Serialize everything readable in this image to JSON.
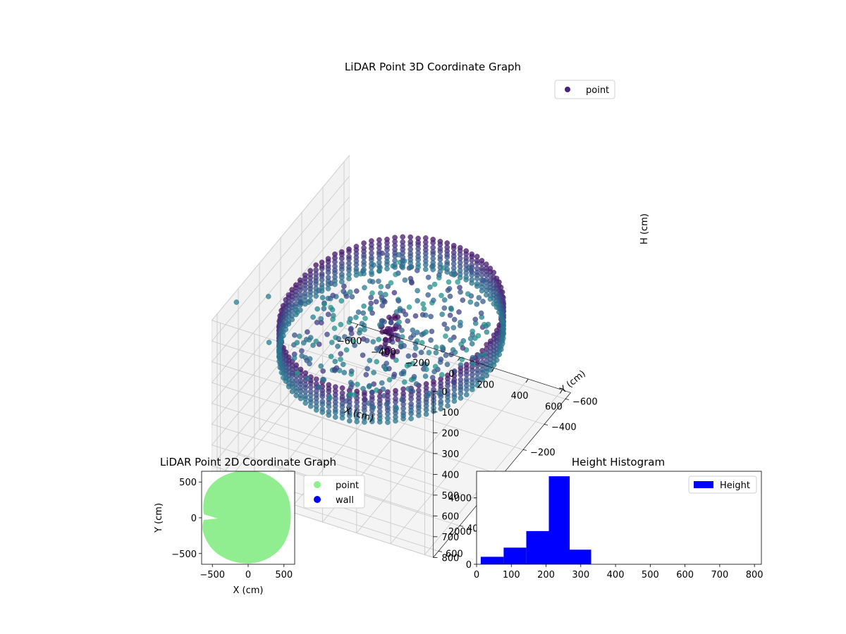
{
  "chart_data": [
    {
      "type": "scatter",
      "title": "LiDAR Point 3D Coordinate Graph",
      "xlabel": "X (cm)",
      "ylabel": "Y (cm)",
      "zlabel": "H (cm)",
      "xlim": [
        -650,
        650
      ],
      "ylim": [
        -650,
        650
      ],
      "zlim": [
        0,
        800
      ],
      "z_inverted": true,
      "x_ticks": [
        -600,
        -400,
        -200,
        0,
        200,
        400,
        600
      ],
      "y_ticks": [
        -600,
        -400,
        -200,
        0,
        200,
        400,
        600
      ],
      "z_ticks": [
        0,
        100,
        200,
        300,
        400,
        500,
        600,
        700,
        800
      ],
      "grid": true,
      "legend": {
        "position": "top-right",
        "entries": [
          {
            "label": "point",
            "color": "#46257a"
          }
        ]
      },
      "colormap": "viridis",
      "series": [
        {
          "name": "point",
          "structure": "cylindrical wall of points",
          "wall_radius": 560,
          "wall_height_range": [
            200,
            350
          ],
          "outliers": [
            {
              "x": -630,
              "y": 450,
              "h": 30
            },
            {
              "x": -560,
              "y": 260,
              "h": 100
            },
            {
              "x": -420,
              "y": 480,
              "h": 150
            }
          ]
        }
      ]
    },
    {
      "type": "scatter",
      "title": "LiDAR Point 2D Coordinate Graph",
      "xlabel": "X (cm)",
      "ylabel": "Y (cm)",
      "xlim": [
        -650,
        650
      ],
      "ylim": [
        -650,
        650
      ],
      "x_ticks": [
        -500,
        0,
        500
      ],
      "y_ticks": [
        -500,
        0,
        500
      ],
      "legend": {
        "position": "outside-right",
        "entries": [
          {
            "label": "point",
            "color": "#90ee90"
          },
          {
            "label": "wall",
            "color": "#0000ff"
          }
        ]
      },
      "series": [
        {
          "name": "point",
          "color": "#90ee90",
          "region": "disc",
          "radius": 590
        }
      ]
    },
    {
      "type": "bar",
      "title": "Height Histogram",
      "xlabel": "",
      "ylabel": "",
      "xlim": [
        0,
        820
      ],
      "ylim": [
        0,
        5600
      ],
      "x_ticks": [
        0,
        100,
        200,
        300,
        400,
        500,
        600,
        700,
        800
      ],
      "y_ticks": [
        0,
        2000,
        4000
      ],
      "legend": {
        "position": "top-right",
        "entries": [
          {
            "label": "Height",
            "color": "#0000ff"
          }
        ]
      },
      "bins": [
        {
          "start": 12,
          "end": 78,
          "value": 450
        },
        {
          "start": 78,
          "end": 143,
          "value": 1000
        },
        {
          "start": 143,
          "end": 208,
          "value": 2000
        },
        {
          "start": 208,
          "end": 268,
          "value": 5300
        },
        {
          "start": 268,
          "end": 330,
          "value": 880
        },
        {
          "start": 330,
          "end": 820,
          "value": 0
        }
      ],
      "color": "#0000ff"
    }
  ]
}
